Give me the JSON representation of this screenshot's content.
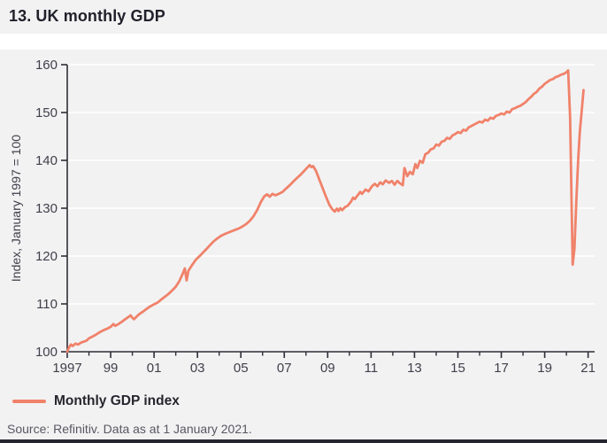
{
  "page": {
    "title": "13. UK monthly GDP",
    "source": "Source: Refinitiv. Data as at 1 January 2021.",
    "colors": {
      "accent": "#F0826A",
      "panel_bg": "#F2F2F3",
      "axis": "#2E2E36",
      "tick_text": "#40404B",
      "grid": "#FFFFFF",
      "title_text": "#21212B",
      "bottom_bar": "#26262F"
    }
  },
  "legend": {
    "label": "Monthly GDP index"
  },
  "chart_data": {
    "type": "line",
    "title": "13. UK monthly GDP",
    "xlabel": "",
    "ylabel": "Index, January 1997 = 100",
    "ylim": [
      100,
      160
    ],
    "xlim": [
      1997,
      2021.3
    ],
    "yticks": [
      100,
      110,
      120,
      130,
      140,
      150,
      160
    ],
    "xticks": [
      {
        "x": 1997,
        "label": "1997"
      },
      {
        "x": 1999,
        "label": "99"
      },
      {
        "x": 2001,
        "label": "01"
      },
      {
        "x": 2003,
        "label": "03"
      },
      {
        "x": 2005,
        "label": "05"
      },
      {
        "x": 2007,
        "label": "07"
      },
      {
        "x": 2009,
        "label": "09"
      },
      {
        "x": 2011,
        "label": "11"
      },
      {
        "x": 2013,
        "label": "13"
      },
      {
        "x": 2015,
        "label": "15"
      },
      {
        "x": 2017,
        "label": "17"
      },
      {
        "x": 2019,
        "label": "19"
      },
      {
        "x": 2021,
        "label": "21"
      }
    ],
    "xticks_minor": [
      1998,
      2000,
      2002,
      2004,
      2006,
      2008,
      2010,
      2012,
      2014,
      2016,
      2018,
      2020
    ],
    "grid": "horizontal-white",
    "legend_position": "bottom-left",
    "series": [
      {
        "name": "Monthly GDP index",
        "color": "#F0826A",
        "points": [
          [
            1997.0,
            100.0
          ],
          [
            1997.08,
            100.9
          ],
          [
            1997.17,
            101.5
          ],
          [
            1997.25,
            101.2
          ],
          [
            1997.38,
            101.7
          ],
          [
            1997.5,
            101.5
          ],
          [
            1997.63,
            101.9
          ],
          [
            1997.75,
            102.1
          ],
          [
            1997.88,
            102.3
          ],
          [
            1998.0,
            102.8
          ],
          [
            1998.17,
            103.2
          ],
          [
            1998.33,
            103.6
          ],
          [
            1998.5,
            104.1
          ],
          [
            1998.67,
            104.5
          ],
          [
            1998.83,
            104.8
          ],
          [
            1999.0,
            105.2
          ],
          [
            1999.13,
            105.8
          ],
          [
            1999.21,
            105.4
          ],
          [
            1999.33,
            105.7
          ],
          [
            1999.5,
            106.2
          ],
          [
            1999.67,
            106.8
          ],
          [
            1999.83,
            107.3
          ],
          [
            1999.92,
            107.6
          ],
          [
            2000.0,
            107.1
          ],
          [
            2000.08,
            106.8
          ],
          [
            2000.21,
            107.4
          ],
          [
            2000.33,
            107.9
          ],
          [
            2000.5,
            108.4
          ],
          [
            2000.67,
            109.0
          ],
          [
            2000.83,
            109.5
          ],
          [
            2001.0,
            109.9
          ],
          [
            2001.17,
            110.3
          ],
          [
            2001.33,
            110.9
          ],
          [
            2001.5,
            111.5
          ],
          [
            2001.67,
            112.1
          ],
          [
            2001.83,
            112.8
          ],
          [
            2002.0,
            113.6
          ],
          [
            2002.17,
            114.8
          ],
          [
            2002.33,
            116.4
          ],
          [
            2002.42,
            117.4
          ],
          [
            2002.5,
            114.9
          ],
          [
            2002.58,
            116.9
          ],
          [
            2002.75,
            118.1
          ],
          [
            2002.92,
            119.2
          ],
          [
            2003.08,
            119.9
          ],
          [
            2003.25,
            120.7
          ],
          [
            2003.42,
            121.5
          ],
          [
            2003.58,
            122.3
          ],
          [
            2003.75,
            123.1
          ],
          [
            2003.92,
            123.7
          ],
          [
            2004.08,
            124.2
          ],
          [
            2004.25,
            124.6
          ],
          [
            2004.42,
            124.9
          ],
          [
            2004.58,
            125.2
          ],
          [
            2004.75,
            125.5
          ],
          [
            2004.92,
            125.8
          ],
          [
            2005.08,
            126.2
          ],
          [
            2005.25,
            126.7
          ],
          [
            2005.42,
            127.4
          ],
          [
            2005.58,
            128.3
          ],
          [
            2005.75,
            129.6
          ],
          [
            2005.92,
            131.3
          ],
          [
            2006.08,
            132.5
          ],
          [
            2006.21,
            132.9
          ],
          [
            2006.33,
            132.4
          ],
          [
            2006.46,
            133.0
          ],
          [
            2006.58,
            132.7
          ],
          [
            2006.75,
            133.0
          ],
          [
            2006.92,
            133.4
          ],
          [
            2007.08,
            134.1
          ],
          [
            2007.25,
            134.8
          ],
          [
            2007.42,
            135.6
          ],
          [
            2007.58,
            136.3
          ],
          [
            2007.75,
            137.0
          ],
          [
            2007.92,
            137.8
          ],
          [
            2008.08,
            138.6
          ],
          [
            2008.17,
            139.0
          ],
          [
            2008.25,
            138.6
          ],
          [
            2008.33,
            138.8
          ],
          [
            2008.46,
            137.8
          ],
          [
            2008.58,
            136.4
          ],
          [
            2008.75,
            134.4
          ],
          [
            2008.92,
            132.4
          ],
          [
            2009.08,
            130.7
          ],
          [
            2009.21,
            129.8
          ],
          [
            2009.33,
            129.3
          ],
          [
            2009.42,
            129.9
          ],
          [
            2009.5,
            129.4
          ],
          [
            2009.58,
            130.0
          ],
          [
            2009.67,
            129.6
          ],
          [
            2009.79,
            130.2
          ],
          [
            2009.92,
            130.5
          ],
          [
            2010.08,
            131.4
          ],
          [
            2010.17,
            132.2
          ],
          [
            2010.25,
            131.9
          ],
          [
            2010.38,
            132.7
          ],
          [
            2010.5,
            133.4
          ],
          [
            2010.58,
            133.0
          ],
          [
            2010.75,
            133.9
          ],
          [
            2010.88,
            133.5
          ],
          [
            2011.04,
            134.6
          ],
          [
            2011.17,
            135.1
          ],
          [
            2011.29,
            134.6
          ],
          [
            2011.42,
            135.4
          ],
          [
            2011.54,
            135.0
          ],
          [
            2011.67,
            135.8
          ],
          [
            2011.83,
            135.3
          ],
          [
            2011.96,
            135.7
          ],
          [
            2012.08,
            134.9
          ],
          [
            2012.21,
            135.7
          ],
          [
            2012.33,
            135.2
          ],
          [
            2012.46,
            134.8
          ],
          [
            2012.54,
            138.4
          ],
          [
            2012.67,
            136.7
          ],
          [
            2012.79,
            137.6
          ],
          [
            2012.92,
            137.1
          ],
          [
            2013.04,
            139.2
          ],
          [
            2013.13,
            138.4
          ],
          [
            2013.25,
            139.9
          ],
          [
            2013.38,
            139.5
          ],
          [
            2013.5,
            141.3
          ],
          [
            2013.63,
            141.6
          ],
          [
            2013.75,
            142.3
          ],
          [
            2013.88,
            142.5
          ],
          [
            2014.0,
            143.3
          ],
          [
            2014.13,
            143.1
          ],
          [
            2014.25,
            143.9
          ],
          [
            2014.38,
            144.1
          ],
          [
            2014.5,
            144.7
          ],
          [
            2014.63,
            144.5
          ],
          [
            2014.75,
            145.2
          ],
          [
            2014.88,
            145.5
          ],
          [
            2015.0,
            145.9
          ],
          [
            2015.13,
            145.7
          ],
          [
            2015.25,
            146.4
          ],
          [
            2015.38,
            146.2
          ],
          [
            2015.5,
            146.9
          ],
          [
            2015.63,
            147.2
          ],
          [
            2015.75,
            147.5
          ],
          [
            2015.88,
            147.8
          ],
          [
            2016.0,
            148.1
          ],
          [
            2016.13,
            147.9
          ],
          [
            2016.25,
            148.5
          ],
          [
            2016.38,
            148.3
          ],
          [
            2016.5,
            148.9
          ],
          [
            2016.63,
            148.7
          ],
          [
            2016.75,
            149.3
          ],
          [
            2016.88,
            149.5
          ],
          [
            2017.0,
            149.8
          ],
          [
            2017.13,
            149.6
          ],
          [
            2017.25,
            150.2
          ],
          [
            2017.38,
            150.0
          ],
          [
            2017.5,
            150.7
          ],
          [
            2017.63,
            150.9
          ],
          [
            2017.75,
            151.2
          ],
          [
            2017.88,
            151.4
          ],
          [
            2018.0,
            151.8
          ],
          [
            2018.13,
            152.2
          ],
          [
            2018.25,
            152.8
          ],
          [
            2018.38,
            153.3
          ],
          [
            2018.5,
            153.9
          ],
          [
            2018.63,
            154.3
          ],
          [
            2018.75,
            155.0
          ],
          [
            2018.88,
            155.4
          ],
          [
            2019.0,
            156.0
          ],
          [
            2019.13,
            156.4
          ],
          [
            2019.25,
            156.8
          ],
          [
            2019.38,
            157.0
          ],
          [
            2019.5,
            157.4
          ],
          [
            2019.63,
            157.6
          ],
          [
            2019.75,
            157.9
          ],
          [
            2019.88,
            158.1
          ],
          [
            2020.0,
            158.4
          ],
          [
            2020.08,
            158.8
          ],
          [
            2020.17,
            149.0
          ],
          [
            2020.29,
            118.2
          ],
          [
            2020.37,
            121.5
          ],
          [
            2020.46,
            131.8
          ],
          [
            2020.54,
            140.0
          ],
          [
            2020.62,
            146.0
          ],
          [
            2020.71,
            150.5
          ],
          [
            2020.79,
            154.7
          ]
        ]
      }
    ]
  }
}
